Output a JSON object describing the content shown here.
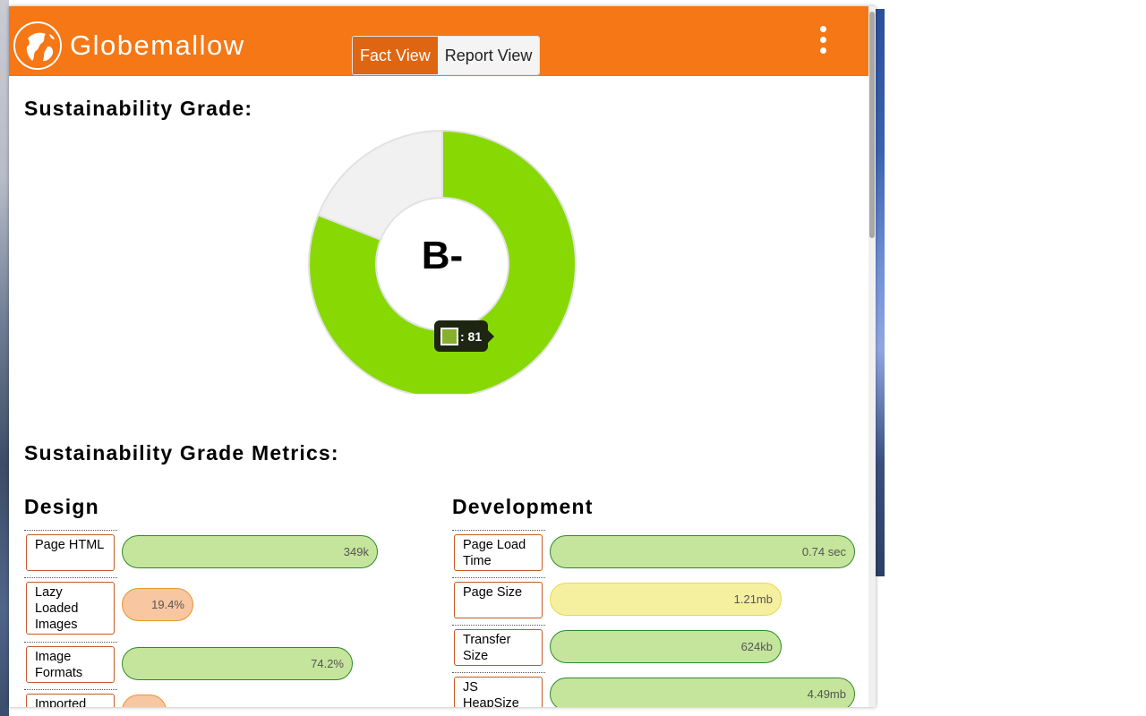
{
  "header": {
    "brand": "Globemallow",
    "view_toggle": {
      "fact_label": "Fact View",
      "report_label": "Report View",
      "active": "fact"
    }
  },
  "grade": {
    "heading": "Sustainability Grade:",
    "letter": "B-",
    "tooltip_label": ": 81"
  },
  "chart_data": {
    "type": "pie",
    "values": [
      81,
      19
    ],
    "colors": [
      "#88d904",
      "#f1f1f1"
    ],
    "tooltip_value": 81
  },
  "metrics": {
    "heading": "Sustainability Grade Metrics:",
    "design": {
      "title": "Design",
      "items": [
        {
          "label": "Page HTML",
          "value": "349k",
          "fill": 0.89,
          "status": "good"
        },
        {
          "label": "Lazy Loaded Images",
          "value": "19.4%",
          "fill": 0.26,
          "status": "warn"
        },
        {
          "label": "Image Formats",
          "value": "74.2%",
          "fill": 0.83,
          "status": "good"
        },
        {
          "label": "Imported",
          "value": "",
          "fill": 0.17,
          "status": "warn"
        }
      ]
    },
    "development": {
      "title": "Development",
      "items": [
        {
          "label": "Page Load Time",
          "value": "0.74 sec",
          "fill": 1.0,
          "status": "good"
        },
        {
          "label": "Page Size",
          "value": "1.21mb",
          "fill": 0.76,
          "status": "caution"
        },
        {
          "label": "Transfer Size",
          "value": "624kb",
          "fill": 0.76,
          "status": "good"
        },
        {
          "label": "JS HeapSize",
          "value": "4.49mb",
          "fill": 1.0,
          "status": "good"
        }
      ]
    }
  },
  "colors": {
    "brand": "#f57716",
    "good": "#c5e59c",
    "warn": "#f8c6a0",
    "caution": "#f5f0a0",
    "grade": "#88d904"
  }
}
